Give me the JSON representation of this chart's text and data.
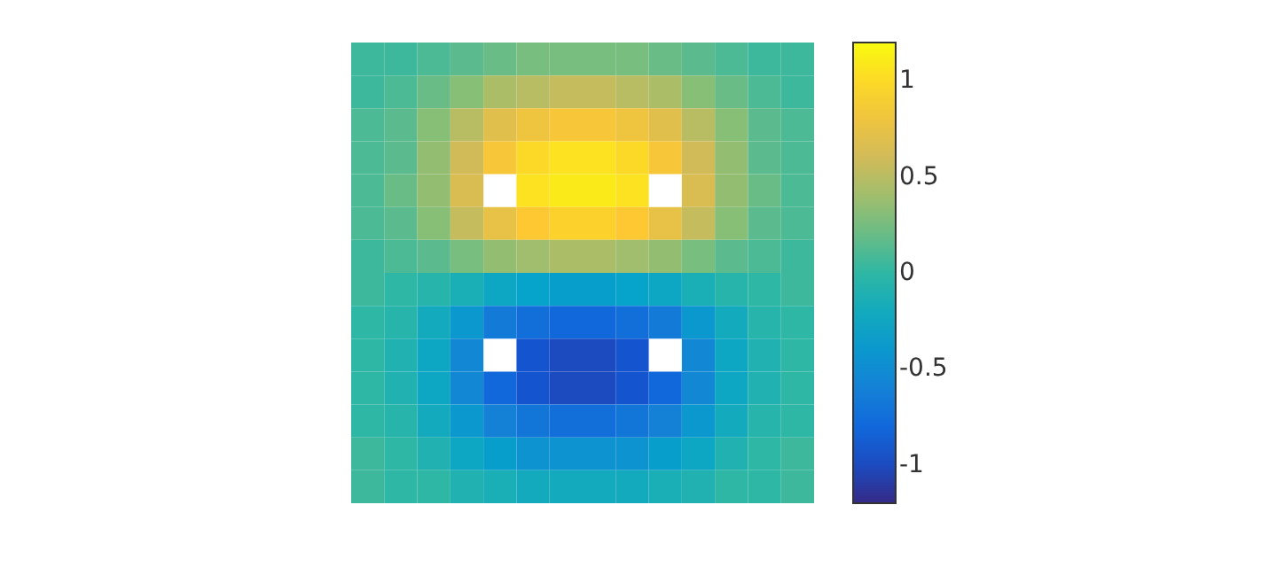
{
  "chart_data": {
    "type": "heatmap",
    "categories": [
      null,
      null,
      null,
      null,
      null,
      null,
      null,
      null,
      null,
      null,
      null,
      null,
      null,
      null
    ],
    "y_categories": [
      null,
      null,
      null,
      null,
      null,
      null,
      null,
      null,
      null,
      null,
      null,
      null,
      null,
      null
    ],
    "cells": [
      [
        0.05,
        0.05,
        0.1,
        0.15,
        0.2,
        0.25,
        0.25,
        0.25,
        0.25,
        0.2,
        0.15,
        0.1,
        0.05,
        0.05
      ],
      [
        0.05,
        0.1,
        0.2,
        0.3,
        0.45,
        0.5,
        0.55,
        0.55,
        0.5,
        0.45,
        0.3,
        0.2,
        0.1,
        0.05
      ],
      [
        0.1,
        0.15,
        0.3,
        0.5,
        0.7,
        0.8,
        0.85,
        0.85,
        0.8,
        0.7,
        0.5,
        0.3,
        0.15,
        0.1
      ],
      [
        0.1,
        0.15,
        0.35,
        0.6,
        0.85,
        1,
        1.05,
        1.05,
        1,
        0.85,
        0.6,
        0.35,
        0.15,
        0.1
      ],
      [
        0.1,
        0.2,
        0.35,
        0.65,
        null,
        1.05,
        1.1,
        1.1,
        1.05,
        null,
        0.65,
        0.35,
        0.2,
        0.1
      ],
      [
        0.1,
        0.15,
        0.3,
        0.55,
        0.75,
        0.9,
        0.95,
        0.95,
        0.9,
        0.75,
        0.55,
        0.3,
        0.15,
        0.1
      ],
      [
        0.05,
        0.1,
        0.15,
        0.25,
        0.35,
        0.4,
        0.45,
        0.45,
        0.4,
        0.35,
        0.25,
        0.15,
        0.1,
        0.05
      ],
      [
        0.05,
        0,
        -0.05,
        -0.15,
        -0.25,
        -0.3,
        -0.35,
        -0.35,
        -0.3,
        -0.25,
        -0.15,
        -0.05,
        0,
        0.05
      ],
      [
        0,
        -0.05,
        -0.2,
        -0.4,
        -0.65,
        -0.75,
        -0.8,
        -0.8,
        -0.75,
        -0.65,
        -0.4,
        -0.2,
        -0.05,
        0
      ],
      [
        0,
        -0.1,
        -0.25,
        -0.55,
        null,
        -0.95,
        -1,
        -1,
        -0.95,
        null,
        -0.55,
        -0.25,
        -0.1,
        0
      ],
      [
        0,
        -0.1,
        -0.25,
        -0.55,
        -0.8,
        -0.95,
        -1,
        -1,
        -0.95,
        -0.8,
        -0.55,
        -0.25,
        -0.1,
        0
      ],
      [
        0,
        -0.05,
        -0.2,
        -0.4,
        -0.6,
        -0.7,
        -0.75,
        -0.75,
        -0.7,
        -0.6,
        -0.4,
        -0.2,
        -0.05,
        0
      ],
      [
        0.05,
        0,
        -0.1,
        -0.25,
        -0.35,
        -0.45,
        -0.45,
        -0.45,
        -0.45,
        -0.35,
        -0.25,
        -0.1,
        0,
        0.05
      ],
      [
        0.05,
        0,
        0,
        -0.1,
        -0.15,
        -0.2,
        -0.2,
        -0.2,
        -0.2,
        -0.15,
        -0.1,
        0,
        0,
        0.05
      ]
    ],
    "clim": [
      -1.2,
      1.2
    ],
    "cticks": [
      -1,
      -0.5,
      0,
      0.5,
      1
    ]
  }
}
